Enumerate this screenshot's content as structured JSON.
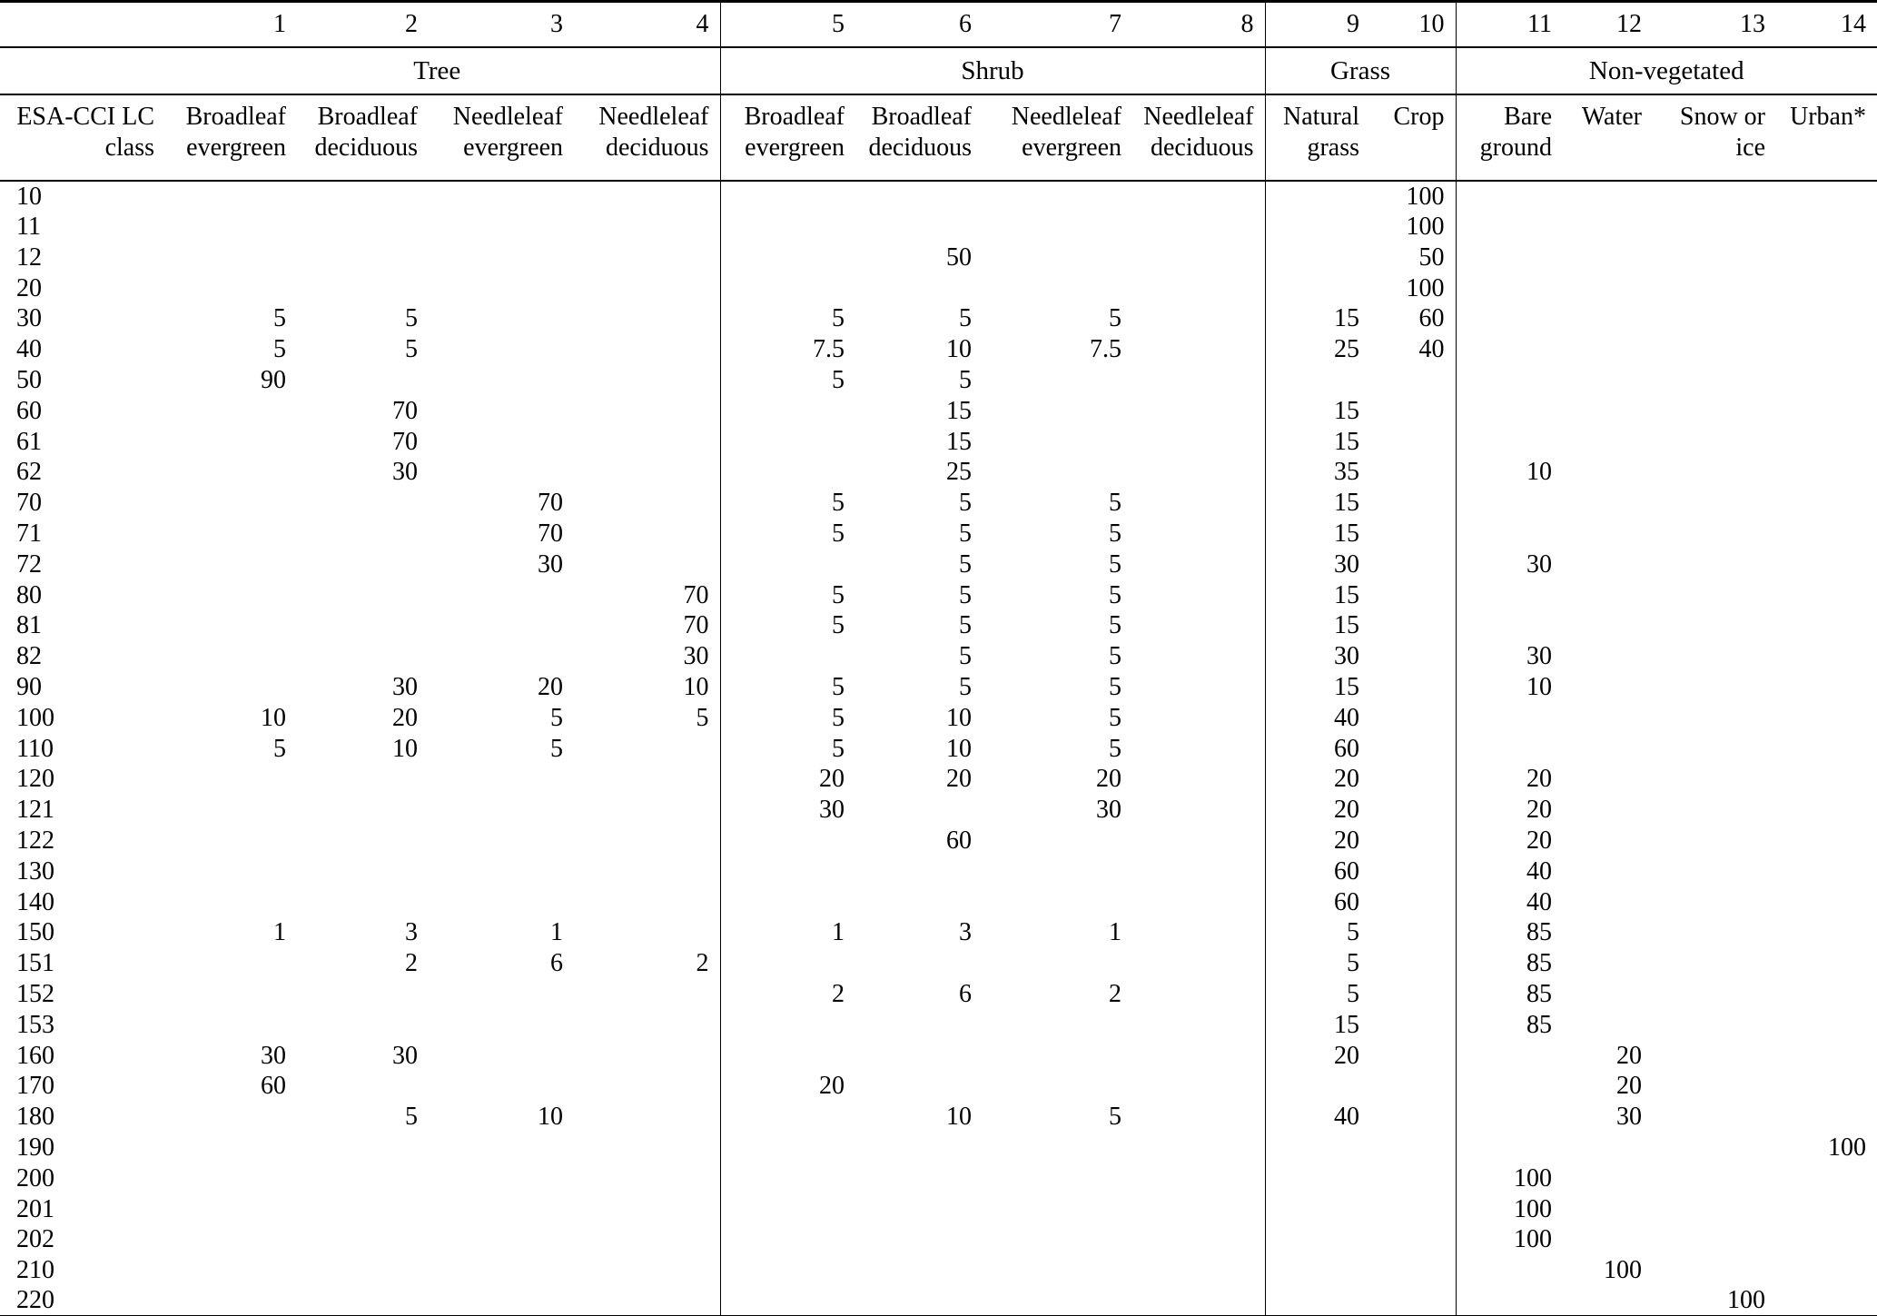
{
  "table": {
    "row_header": {
      "line1": "ESA-CCI LC",
      "line2": "class"
    },
    "groups": [
      {
        "label": "Tree",
        "span": 4
      },
      {
        "label": "Shrub",
        "span": 4
      },
      {
        "label": "Grass",
        "span": 2
      },
      {
        "label": "Non-vegetated",
        "span": 4
      }
    ],
    "columns": [
      {
        "num": "1",
        "line1": "Broadleaf",
        "line2": "evergreen"
      },
      {
        "num": "2",
        "line1": "Broadleaf",
        "line2": "deciduous"
      },
      {
        "num": "3",
        "line1": "Needleleaf",
        "line2": "evergreen"
      },
      {
        "num": "4",
        "line1": "Needleleaf",
        "line2": "deciduous"
      },
      {
        "num": "5",
        "line1": "Broadleaf",
        "line2": "evergreen"
      },
      {
        "num": "6",
        "line1": "Broadleaf",
        "line2": "deciduous"
      },
      {
        "num": "7",
        "line1": "Needleleaf",
        "line2": "evergreen"
      },
      {
        "num": "8",
        "line1": "Needleleaf",
        "line2": "deciduous"
      },
      {
        "num": "9",
        "line1": "Natural",
        "line2": "grass"
      },
      {
        "num": "10",
        "line1": "Crop",
        "line2": ""
      },
      {
        "num": "11",
        "line1": "Bare",
        "line2": "ground"
      },
      {
        "num": "12",
        "line1": "Water",
        "line2": ""
      },
      {
        "num": "13",
        "line1": "Snow or",
        "line2": "ice"
      },
      {
        "num": "14",
        "line1": "Urban*",
        "line2": ""
      }
    ],
    "rows": [
      {
        "lc_class": "10",
        "values": [
          "",
          "",
          "",
          "",
          "",
          "",
          "",
          "",
          "",
          "100",
          "",
          "",
          "",
          ""
        ]
      },
      {
        "lc_class": "11",
        "values": [
          "",
          "",
          "",
          "",
          "",
          "",
          "",
          "",
          "",
          "100",
          "",
          "",
          "",
          ""
        ]
      },
      {
        "lc_class": "12",
        "values": [
          "",
          "",
          "",
          "",
          "",
          "50",
          "",
          "",
          "",
          "50",
          "",
          "",
          "",
          ""
        ]
      },
      {
        "lc_class": "20",
        "values": [
          "",
          "",
          "",
          "",
          "",
          "",
          "",
          "",
          "",
          "100",
          "",
          "",
          "",
          ""
        ]
      },
      {
        "lc_class": "30",
        "values": [
          "5",
          "5",
          "",
          "",
          "5",
          "5",
          "5",
          "",
          "15",
          "60",
          "",
          "",
          "",
          ""
        ]
      },
      {
        "lc_class": "40",
        "values": [
          "5",
          "5",
          "",
          "",
          "7.5",
          "10",
          "7.5",
          "",
          "25",
          "40",
          "",
          "",
          "",
          ""
        ]
      },
      {
        "lc_class": "50",
        "values": [
          "90",
          "",
          "",
          "",
          "5",
          "5",
          "",
          "",
          "",
          "",
          "",
          "",
          "",
          ""
        ]
      },
      {
        "lc_class": "60",
        "values": [
          "",
          "70",
          "",
          "",
          "",
          "15",
          "",
          "",
          "15",
          "",
          "",
          "",
          "",
          ""
        ]
      },
      {
        "lc_class": "61",
        "values": [
          "",
          "70",
          "",
          "",
          "",
          "15",
          "",
          "",
          "15",
          "",
          "",
          "",
          "",
          ""
        ]
      },
      {
        "lc_class": "62",
        "values": [
          "",
          "30",
          "",
          "",
          "",
          "25",
          "",
          "",
          "35",
          "",
          "10",
          "",
          "",
          ""
        ]
      },
      {
        "lc_class": "70",
        "values": [
          "",
          "",
          "70",
          "",
          "5",
          "5",
          "5",
          "",
          "15",
          "",
          "",
          "",
          "",
          ""
        ]
      },
      {
        "lc_class": "71",
        "values": [
          "",
          "",
          "70",
          "",
          "5",
          "5",
          "5",
          "",
          "15",
          "",
          "",
          "",
          "",
          ""
        ]
      },
      {
        "lc_class": "72",
        "values": [
          "",
          "",
          "30",
          "",
          "",
          "5",
          "5",
          "",
          "30",
          "",
          "30",
          "",
          "",
          ""
        ]
      },
      {
        "lc_class": "80",
        "values": [
          "",
          "",
          "",
          "70",
          "5",
          "5",
          "5",
          "",
          "15",
          "",
          "",
          "",
          "",
          ""
        ]
      },
      {
        "lc_class": "81",
        "values": [
          "",
          "",
          "",
          "70",
          "5",
          "5",
          "5",
          "",
          "15",
          "",
          "",
          "",
          "",
          ""
        ]
      },
      {
        "lc_class": "82",
        "values": [
          "",
          "",
          "",
          "30",
          "",
          "5",
          "5",
          "",
          "30",
          "",
          "30",
          "",
          "",
          ""
        ]
      },
      {
        "lc_class": "90",
        "values": [
          "",
          "30",
          "20",
          "10",
          "5",
          "5",
          "5",
          "",
          "15",
          "",
          "10",
          "",
          "",
          ""
        ]
      },
      {
        "lc_class": "100",
        "values": [
          "10",
          "20",
          "5",
          "5",
          "5",
          "10",
          "5",
          "",
          "40",
          "",
          "",
          "",
          "",
          ""
        ]
      },
      {
        "lc_class": "110",
        "values": [
          "5",
          "10",
          "5",
          "",
          "5",
          "10",
          "5",
          "",
          "60",
          "",
          "",
          "",
          "",
          ""
        ]
      },
      {
        "lc_class": "120",
        "values": [
          "",
          "",
          "",
          "",
          "20",
          "20",
          "20",
          "",
          "20",
          "",
          "20",
          "",
          "",
          ""
        ]
      },
      {
        "lc_class": "121",
        "values": [
          "",
          "",
          "",
          "",
          "30",
          "",
          "30",
          "",
          "20",
          "",
          "20",
          "",
          "",
          ""
        ]
      },
      {
        "lc_class": "122",
        "values": [
          "",
          "",
          "",
          "",
          "",
          "60",
          "",
          "",
          "20",
          "",
          "20",
          "",
          "",
          ""
        ]
      },
      {
        "lc_class": "130",
        "values": [
          "",
          "",
          "",
          "",
          "",
          "",
          "",
          "",
          "60",
          "",
          "40",
          "",
          "",
          ""
        ]
      },
      {
        "lc_class": "140",
        "values": [
          "",
          "",
          "",
          "",
          "",
          "",
          "",
          "",
          "60",
          "",
          "40",
          "",
          "",
          ""
        ]
      },
      {
        "lc_class": "150",
        "values": [
          "1",
          "3",
          "1",
          "",
          "1",
          "3",
          "1",
          "",
          "5",
          "",
          "85",
          "",
          "",
          ""
        ]
      },
      {
        "lc_class": "151",
        "values": [
          "",
          "2",
          "6",
          "2",
          "",
          "",
          "",
          "",
          "5",
          "",
          "85",
          "",
          "",
          ""
        ]
      },
      {
        "lc_class": "152",
        "values": [
          "",
          "",
          "",
          "",
          "2",
          "6",
          "2",
          "",
          "5",
          "",
          "85",
          "",
          "",
          ""
        ]
      },
      {
        "lc_class": "153",
        "values": [
          "",
          "",
          "",
          "",
          "",
          "",
          "",
          "",
          "15",
          "",
          "85",
          "",
          "",
          ""
        ]
      },
      {
        "lc_class": "160",
        "values": [
          "30",
          "30",
          "",
          "",
          "",
          "",
          "",
          "",
          "20",
          "",
          "",
          "20",
          "",
          ""
        ]
      },
      {
        "lc_class": "170",
        "values": [
          "60",
          "",
          "",
          "",
          "20",
          "",
          "",
          "",
          "",
          "",
          "",
          "20",
          "",
          ""
        ]
      },
      {
        "lc_class": "180",
        "values": [
          "",
          "5",
          "10",
          "",
          "",
          "10",
          "5",
          "",
          "40",
          "",
          "",
          "30",
          "",
          ""
        ]
      },
      {
        "lc_class": "190",
        "values": [
          "",
          "",
          "",
          "",
          "",
          "",
          "",
          "",
          "",
          "",
          "",
          "",
          "",
          "100"
        ]
      },
      {
        "lc_class": "200",
        "values": [
          "",
          "",
          "",
          "",
          "",
          "",
          "",
          "",
          "",
          "",
          "100",
          "",
          "",
          ""
        ]
      },
      {
        "lc_class": "201",
        "values": [
          "",
          "",
          "",
          "",
          "",
          "",
          "",
          "",
          "",
          "",
          "100",
          "",
          "",
          ""
        ]
      },
      {
        "lc_class": "202",
        "values": [
          "",
          "",
          "",
          "",
          "",
          "",
          "",
          "",
          "",
          "",
          "100",
          "",
          "",
          ""
        ]
      },
      {
        "lc_class": "210",
        "values": [
          "",
          "",
          "",
          "",
          "",
          "",
          "",
          "",
          "",
          "",
          "",
          "100",
          "",
          ""
        ]
      },
      {
        "lc_class": "220",
        "values": [
          "",
          "",
          "",
          "",
          "",
          "",
          "",
          "",
          "",
          "",
          "",
          "",
          "100",
          ""
        ]
      }
    ]
  }
}
